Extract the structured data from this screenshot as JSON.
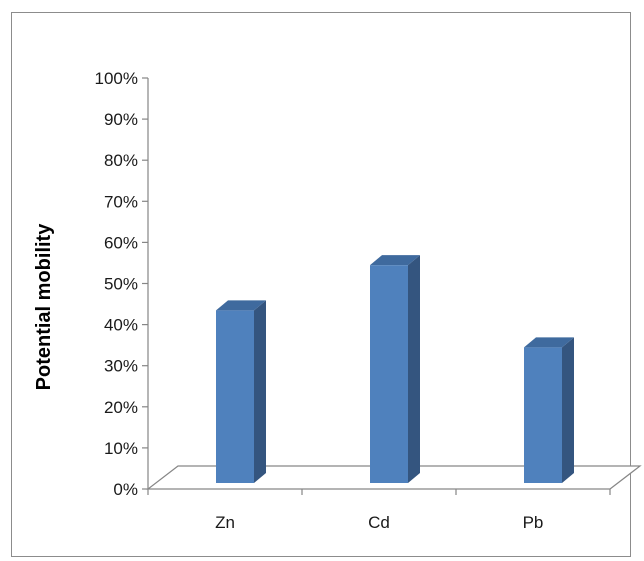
{
  "chart_data": {
    "type": "bar",
    "style": "3d-column",
    "categories": [
      "Zn",
      "Cd",
      "Pb"
    ],
    "series": [
      {
        "values": [
          0.42,
          0.53,
          0.33
        ]
      }
    ],
    "title": "",
    "xlabel": "",
    "ylabel": "Potential  mobility",
    "ylim": [
      0,
      1
    ],
    "yticks": [
      "0%",
      "10%",
      "20%",
      "30%",
      "40%",
      "50%",
      "60%",
      "70%",
      "80%",
      "90%",
      "100%"
    ],
    "grid": false,
    "legend": "none",
    "colors": {
      "bar_front": "#4f81bd",
      "bar_side": "#34557f",
      "bar_top": "#3f6a9e",
      "axis": "#868686",
      "frame": "#8c8c8c"
    }
  }
}
